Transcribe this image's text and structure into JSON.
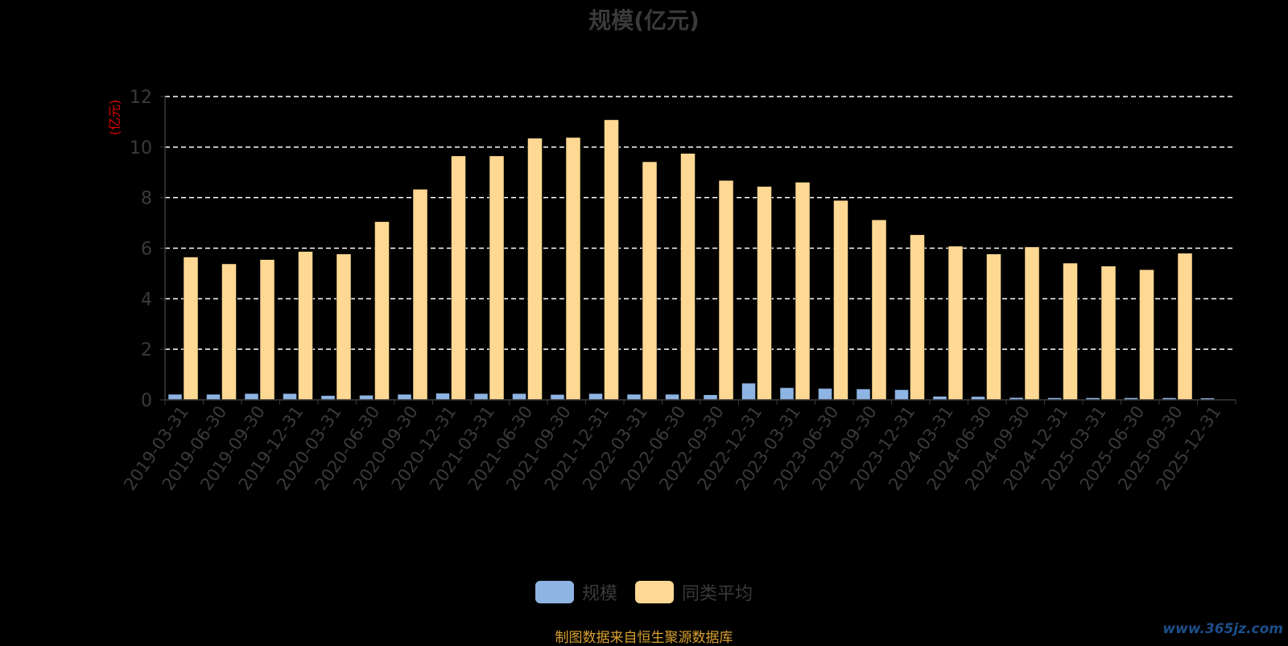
{
  "chart_data": {
    "type": "bar",
    "title": "规模(亿元)",
    "ylabel": "(亿元)",
    "ylim": [
      0,
      12
    ],
    "yticks": [
      0,
      2,
      4,
      6,
      8,
      10,
      12
    ],
    "grid": true,
    "legend_position": "bottom-center",
    "categories": [
      "2019-03-31",
      "2019-06-30",
      "2019-09-30",
      "2019-12-31",
      "2020-03-31",
      "2020-06-30",
      "2020-09-30",
      "2020-12-31",
      "2021-03-31",
      "2021-06-30",
      "2021-09-30",
      "2021-12-31",
      "2022-03-31",
      "2022-06-30",
      "2022-09-30",
      "2022-12-31",
      "2023-03-31",
      "2023-06-30",
      "2023-09-30",
      "2023-12-31",
      "2024-03-31",
      "2024-06-30",
      "2024-09-30",
      "2024-12-31",
      "2025-03-31",
      "2025-06-30",
      "2025-09-30",
      "2025-12-31"
    ],
    "series": [
      {
        "name": "规模",
        "color": "#8eb4e3",
        "values": [
          0.22,
          0.22,
          0.25,
          0.25,
          0.17,
          0.18,
          0.22,
          0.26,
          0.25,
          0.25,
          0.21,
          0.25,
          0.22,
          0.22,
          0.2,
          0.66,
          0.48,
          0.45,
          0.43,
          0.4,
          0.14,
          0.13,
          0.09,
          0.08,
          0.08,
          0.08,
          0.08,
          0.07
        ]
      },
      {
        "name": "同类平均",
        "color": "#ffd993",
        "values": [
          5.65,
          5.38,
          5.55,
          5.87,
          5.77,
          7.05,
          8.33,
          9.65,
          9.65,
          10.35,
          10.38,
          11.08,
          9.42,
          9.75,
          8.68,
          8.44,
          8.61,
          7.89,
          7.12,
          6.53,
          6.08,
          5.77,
          6.05,
          5.41,
          5.29,
          5.15,
          5.8,
          null
        ]
      }
    ]
  },
  "footer": {
    "source_note": "制图数据来自恒生聚源数据库",
    "watermark": "www.365jz.com"
  }
}
